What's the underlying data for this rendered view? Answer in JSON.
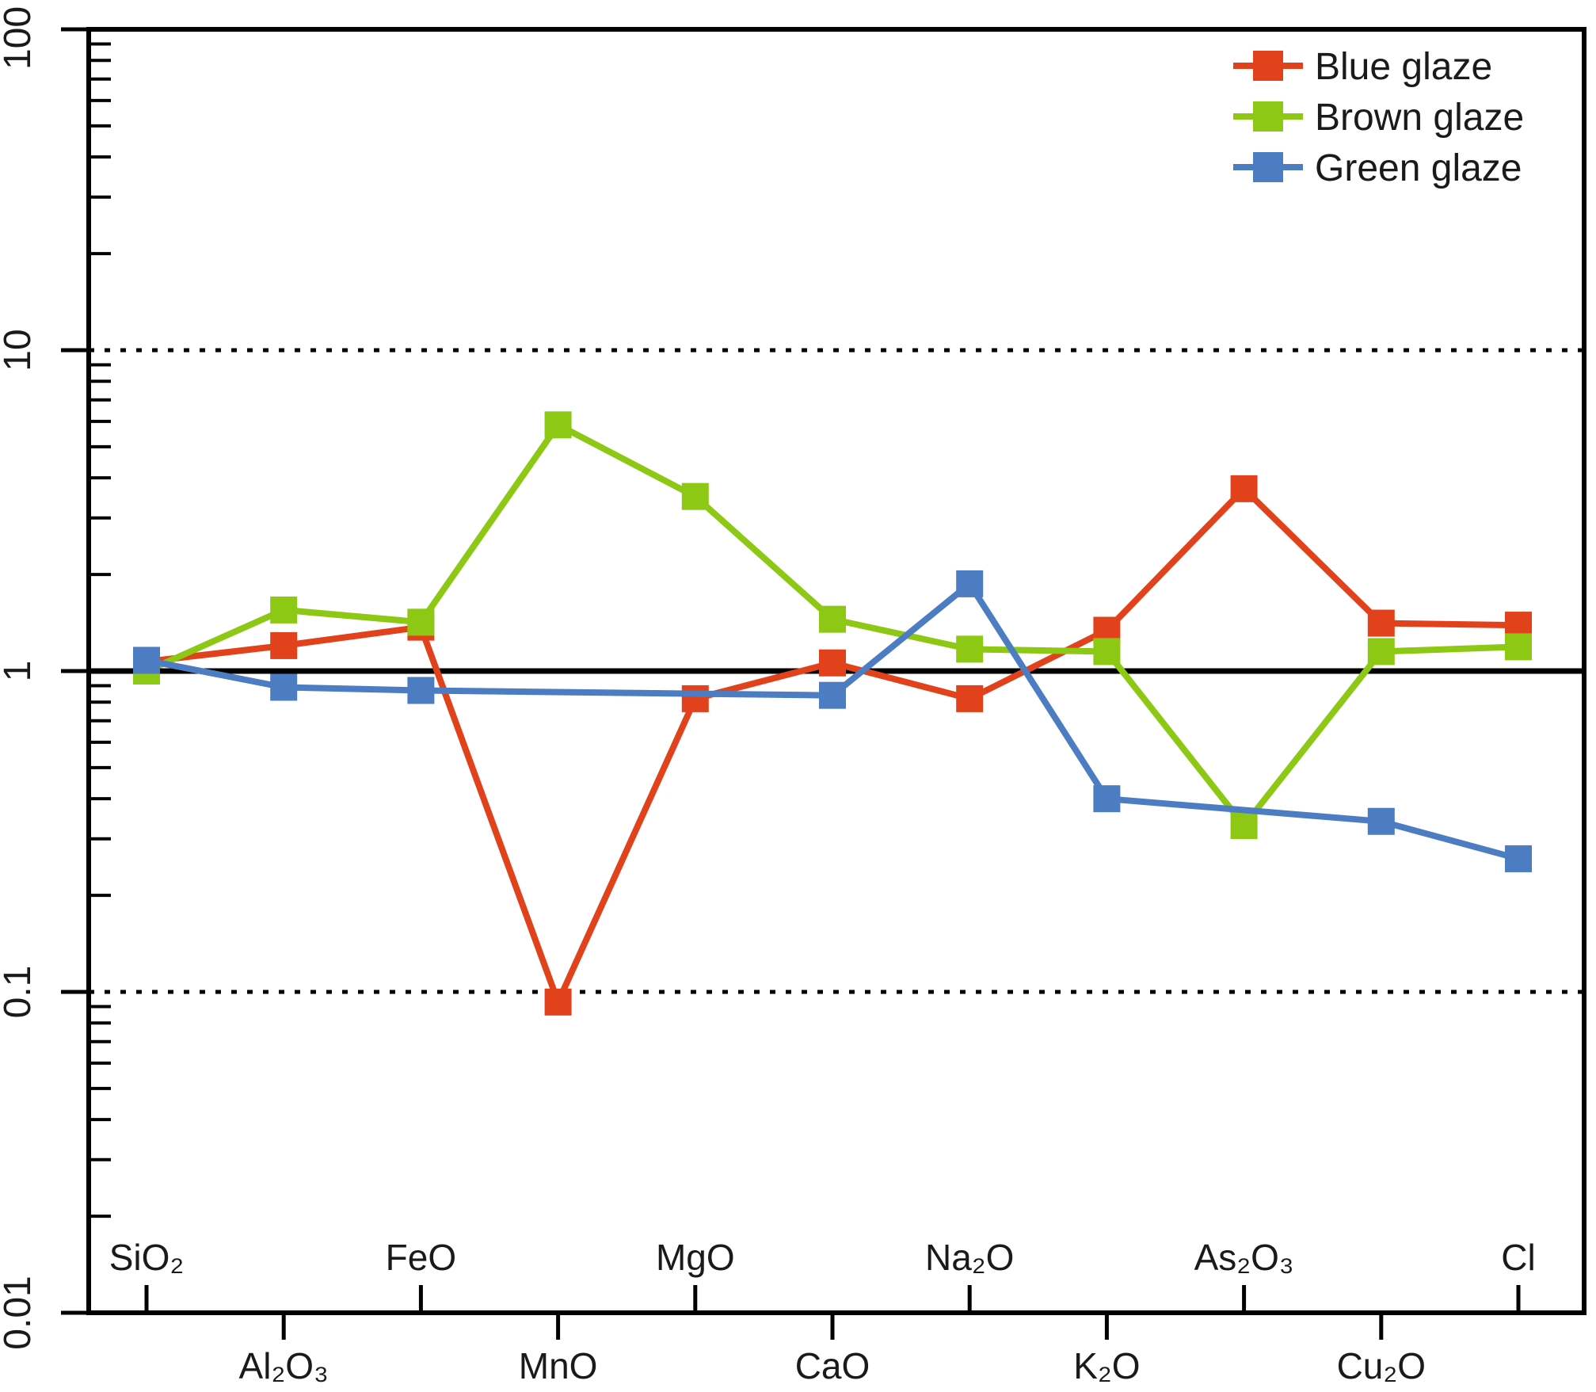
{
  "figure": {
    "background": "#ffffff",
    "frame_color": "#000000",
    "text_color": "#1a1a1a"
  },
  "chart_data": {
    "type": "line",
    "title": "",
    "xlabel": "",
    "ylabel": "",
    "x_categories": [
      "SiO₂",
      "Al₂O₃",
      "FeO",
      "MnO",
      "MgO",
      "CaO",
      "Na₂O",
      "K₂O",
      "As₂O₃",
      "Cu₂O",
      "Cl"
    ],
    "y_axis": {
      "scale": "log",
      "min": 0.01,
      "max": 100,
      "tick_labels": [
        "100",
        "10",
        "1",
        "0.1",
        "0.01"
      ],
      "tick_values": [
        100,
        10,
        1,
        0.1,
        0.01
      ],
      "reference_lines": [
        {
          "value": 10,
          "style": "dotted"
        },
        {
          "value": 1,
          "style": "solid"
        },
        {
          "value": 0.1,
          "style": "dotted"
        }
      ]
    },
    "grid": "off",
    "legend_position": "top-right",
    "series": [
      {
        "name": "Blue glaze",
        "color": "#e2421b",
        "marker": "square",
        "values": [
          1.07,
          1.2,
          1.37,
          0.093,
          0.82,
          1.06,
          0.82,
          1.34,
          3.7,
          1.41,
          1.39
        ]
      },
      {
        "name": "Brown glaze",
        "color": "#8cc814",
        "marker": "square",
        "values": [
          1.0,
          1.55,
          1.42,
          5.85,
          3.5,
          1.45,
          1.17,
          1.15,
          0.33,
          1.15,
          1.19
        ]
      },
      {
        "name": "Green glaze",
        "color": "#4c7cc2",
        "marker": "square",
        "values": [
          1.08,
          0.89,
          0.87,
          null,
          null,
          0.84,
          1.87,
          0.4,
          null,
          0.34,
          0.26
        ]
      }
    ]
  }
}
